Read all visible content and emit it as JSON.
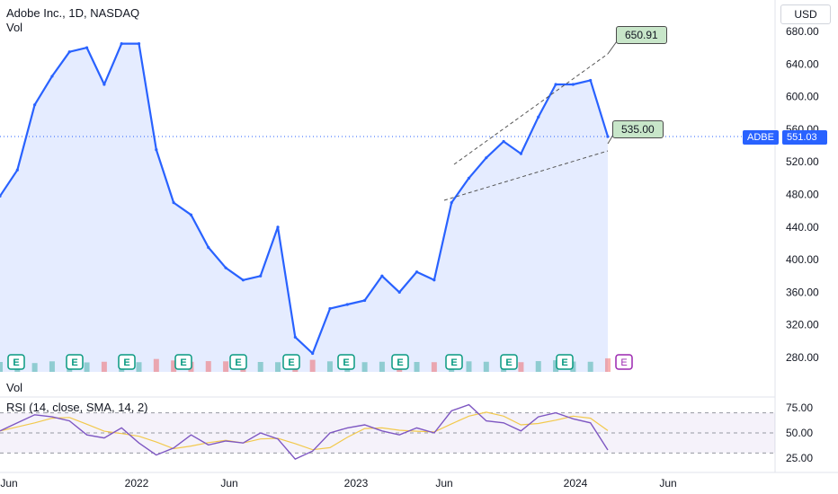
{
  "header": {
    "title": "Adobe Inc., 1D, NASDAQ",
    "vol_label": "Vol"
  },
  "currency": "USD",
  "price_axis": {
    "ticks": [
      "680.00",
      "640.00",
      "600.00",
      "560.00",
      "520.00",
      "480.00",
      "440.00",
      "400.00",
      "360.00",
      "320.00",
      "280.00"
    ]
  },
  "symbol_tag": {
    "symbol": "ADBE",
    "price": "551.03"
  },
  "annotations": {
    "upper_label": "650.91",
    "lower_label": "535.00"
  },
  "earnings_marker": "E",
  "volume_pane": {
    "label": "Vol"
  },
  "rsi_pane": {
    "label": "RSI (14, close, SMA, 14, 2)",
    "ticks": [
      "75.00",
      "50.00",
      "25.00"
    ]
  },
  "time_axis": {
    "labels": [
      "Jun",
      "2022",
      "Jun",
      "2023",
      "Jun",
      "2024",
      "Jun"
    ]
  },
  "colors": {
    "line": "#2962ff",
    "area": "#2962ff",
    "rsi": "#7e57c2",
    "rsi_ma": "#f2c94c",
    "earnings": "#089981",
    "vol_up": "#26a69a",
    "vol_down": "#ef5350"
  },
  "chart_data": {
    "type": "line",
    "title": "Adobe Inc., 1D, NASDAQ",
    "ylim": [
      270,
      690
    ],
    "x_ticks": [
      "Jun",
      "2022",
      "Jun",
      "2023",
      "Jun",
      "2024",
      "Jun"
    ],
    "series": [
      {
        "x": [
          "2021-04",
          "2021-05",
          "2021-06",
          "2021-07",
          "2021-08",
          "2021-09",
          "2021-10",
          "2021-11",
          "2021-12",
          "2022-01",
          "2022-02",
          "2022-03",
          "2022-04",
          "2022-05",
          "2022-06",
          "2022-07",
          "2022-08",
          "2022-09",
          "2022-10",
          "2022-11",
          "2022-12",
          "2023-01",
          "2023-02",
          "2023-03",
          "2023-04",
          "2023-05",
          "2023-06",
          "2023-07",
          "2023-08",
          "2023-09",
          "2023-10",
          "2023-11",
          "2023-12",
          "2024-01",
          "2024-02",
          "2024-03"
        ],
        "values": [
          478,
          510,
          590,
          625,
          655,
          660,
          615,
          665,
          665,
          535,
          470,
          455,
          415,
          390,
          375,
          380,
          440,
          305,
          285,
          340,
          345,
          350,
          380,
          360,
          385,
          375,
          470,
          500,
          525,
          545,
          530,
          575,
          615,
          615,
          620,
          551
        ]
      }
    ],
    "volume": [
      2.1,
      1.8,
      1.6,
      2.4,
      1.7,
      1.9,
      2.2,
      2.6,
      2.0,
      3.5,
      2.8,
      2.2,
      2.5,
      2.4,
      2.7,
      2.1,
      2.0,
      4.2,
      3.1,
      2.4,
      2.3,
      2.0,
      2.2,
      2.6,
      2.1,
      2.0,
      3.0,
      2.4,
      2.2,
      2.1,
      2.0,
      2.5,
      2.9,
      2.3,
      2.2,
      3.8
    ],
    "rsi": [
      52,
      60,
      68,
      66,
      62,
      48,
      45,
      55,
      40,
      28,
      35,
      48,
      38,
      42,
      40,
      50,
      44,
      24,
      32,
      50,
      55,
      58,
      52,
      48,
      55,
      50,
      72,
      78,
      62,
      60,
      52,
      66,
      70,
      64,
      60,
      33
    ],
    "rsi_levels": [
      70,
      50,
      30
    ],
    "rsi_ylim": [
      20,
      80
    ],
    "annotations": [
      {
        "label": "650.91",
        "value": 650.91
      },
      {
        "label": "535.00",
        "value": 535.0
      }
    ],
    "last_price": 551.03
  }
}
